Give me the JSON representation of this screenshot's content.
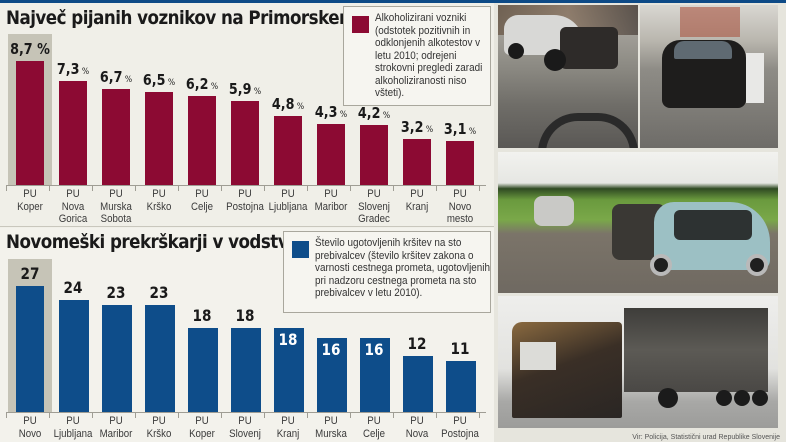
{
  "chart_data": [
    {
      "type": "bar",
      "title": "Največ pijanih voznikov na Primorskem",
      "categories": [
        "PU Koper",
        "PU Nova Gorica",
        "PU Murska Sobota",
        "PU Krško",
        "PU Celje",
        "PU Postojna",
        "PU Ljubljana",
        "PU Maribor",
        "PU Slovenj Gradec",
        "PU Kranj",
        "PU Novo mesto"
      ],
      "values": [
        8.7,
        7.3,
        6.7,
        6.5,
        6.2,
        5.9,
        4.8,
        4.3,
        4.2,
        3.2,
        3.1
      ],
      "value_labels": [
        "8,7 %",
        "7,3 %",
        "6,7 %",
        "6,5 %",
        "6,2 %",
        "5,9 %",
        "4,8 %",
        "4,3 %",
        "4,2 %",
        "3,2 %",
        "3,1 %"
      ],
      "legend": [
        "Alkoholizirani vozniki (odstotek pozitivnih in odklonjenih alkotestov v letu 2010; odrejeni strokovni pregledi zaradi alkoholiziranosti niso všteti)."
      ],
      "color": "#8c0a33",
      "highlight_category": "PU Koper",
      "xlabel": "",
      "ylabel": "",
      "grid": false
    },
    {
      "type": "bar",
      "title": "Novomeški prekrškarji v vodstvu",
      "categories": [
        "PU Novo mesto",
        "PU Ljubljana",
        "PU Maribor",
        "PU Krško",
        "PU Koper",
        "PU Slovenj Gradec",
        "PU Kranj",
        "PU Murska Sobota",
        "PU Celje",
        "PU Nova Gorica",
        "PU Postojna"
      ],
      "values": [
        27,
        24,
        23,
        23,
        18,
        18,
        18,
        16,
        16,
        12,
        11
      ],
      "legend": [
        "Število ugotovljenih kršitev na sto prebivalcev (število kršitev zakona o varnosti cestnega prometa, ugotovljenih pri nadzoru cestnega prometa na sto prebivalcev v letu 2010)."
      ],
      "color": "#0e4d8a",
      "highlight_category": "PU Novo mesto",
      "xlabel": "",
      "ylabel": "",
      "grid": false
    }
  ],
  "top": {
    "title": "Največ pijanih voznikov na Primorskem",
    "legend": "Alkoholizirani vozniki (odstotek pozitivnih in odklonjenih alkotestov v letu 2010; odrejeni strokovni pregledi zaradi alkoholiziranosti niso všteti).",
    "bars": [
      {
        "num": "8,7",
        "pct": " %",
        "l1": "PU",
        "l2": "Koper",
        "l3": ""
      },
      {
        "num": "7,3",
        "pct": " %",
        "l1": "PU",
        "l2": "Nova",
        "l3": "Gorica"
      },
      {
        "num": "6,7",
        "pct": " %",
        "l1": "PU",
        "l2": "Murska",
        "l3": "Sobota"
      },
      {
        "num": "6,5",
        "pct": " %",
        "l1": "PU",
        "l2": "Krško",
        "l3": ""
      },
      {
        "num": "6,2",
        "pct": " %",
        "l1": "PU",
        "l2": "Celje",
        "l3": ""
      },
      {
        "num": "5,9",
        "pct": " %",
        "l1": "PU",
        "l2": "Postojna",
        "l3": ""
      },
      {
        "num": "4,8",
        "pct": " %",
        "l1": "PU",
        "l2": "Ljubljana",
        "l3": ""
      },
      {
        "num": "4,3",
        "pct": " %",
        "l1": "PU",
        "l2": "Maribor",
        "l3": ""
      },
      {
        "num": "4,2",
        "pct": " %",
        "l1": "PU",
        "l2": "Slovenj",
        "l3": "Gradec"
      },
      {
        "num": "3,2",
        "pct": " %",
        "l1": "PU",
        "l2": "Kranj",
        "l3": ""
      },
      {
        "num": "3,1",
        "pct": " %",
        "l1": "PU",
        "l2": "Novo",
        "l3": "mesto"
      }
    ]
  },
  "bottom": {
    "title": "Novomeški prekrškarji v vodstvu",
    "legend": "Število ugotovljenih kršitev na sto prebivalcev (število kršitev zakona o varnosti cestnega prometa, ugotovljenih pri nadzoru cestnega prometa na sto prebivalcev v letu 2010).",
    "bars": [
      {
        "num": "27",
        "l1": "PU",
        "l2": "Novo"
      },
      {
        "num": "24",
        "l1": "PU",
        "l2": "Ljubljana"
      },
      {
        "num": "23",
        "l1": "PU",
        "l2": "Maribor"
      },
      {
        "num": "23",
        "l1": "PU",
        "l2": "Krško"
      },
      {
        "num": "18",
        "l1": "PU",
        "l2": "Koper"
      },
      {
        "num": "18",
        "l1": "PU",
        "l2": "Slovenj"
      },
      {
        "num": "18",
        "l1": "PU",
        "l2": "Kranj"
      },
      {
        "num": "16",
        "l1": "PU",
        "l2": "Murska"
      },
      {
        "num": "16",
        "l1": "PU",
        "l2": "Celje"
      },
      {
        "num": "12",
        "l1": "PU",
        "l2": "Nova"
      },
      {
        "num": "11",
        "l1": "PU",
        "l2": "Postojna"
      }
    ]
  },
  "photos": {
    "source": "Vir: Policija, Statistični urad Republike Slovenije",
    "items": [
      "crashed-silver-car-photo",
      "crashed-dark-car-photo",
      "head-on-collision-photo",
      "burned-truck-photo"
    ]
  }
}
